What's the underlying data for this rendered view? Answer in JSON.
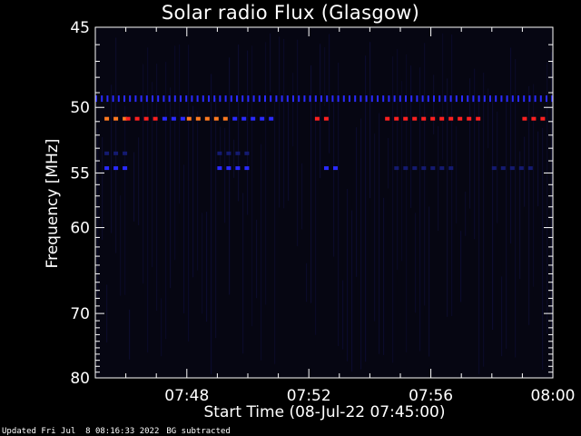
{
  "colors": {
    "background": "#000000",
    "axes": "#ffffff",
    "plot_background": "#060612",
    "strong_signal": "#ff2020",
    "medium_signal": "#ff7a20",
    "weak_signal": "#2a2aff",
    "faint_signal": "#141a70"
  },
  "chart_data": {
    "type": "heatmap",
    "title": "Solar radio Flux (Glasgow)",
    "xlabel": "Start Time (08-Jul-22 07:45:00)",
    "ylabel": "Frequency [MHz]",
    "xlim_minutes_after_start": [
      0,
      15
    ],
    "ylim_mhz": [
      45,
      80
    ],
    "y_axis_inverted": true,
    "y_tick_labels": [
      "45",
      "50",
      "55",
      "60",
      "70",
      "80"
    ],
    "y_tick_values": [
      45,
      50,
      55,
      60,
      70,
      80
    ],
    "x_tick_labels": [
      "07:48",
      "07:52",
      "07:56",
      "08:00"
    ],
    "x_tick_minutes": [
      3,
      7,
      11,
      15
    ],
    "bands": [
      {
        "frequency_mhz": 50.8,
        "intensity": "strong",
        "segments": [
          {
            "start_min": 0.3,
            "end_min": 1.0,
            "level": "medium"
          },
          {
            "start_min": 1.0,
            "end_min": 2.2,
            "level": "strong"
          },
          {
            "start_min": 2.2,
            "end_min": 3.0,
            "level": "weak"
          },
          {
            "start_min": 3.0,
            "end_min": 4.5,
            "level": "medium"
          },
          {
            "start_min": 4.5,
            "end_min": 5.9,
            "level": "weak"
          },
          {
            "start_min": 7.2,
            "end_min": 7.7,
            "level": "strong"
          },
          {
            "start_min": 9.5,
            "end_min": 12.6,
            "level": "strong"
          },
          {
            "start_min": 14.0,
            "end_min": 14.9,
            "level": "strong"
          }
        ]
      },
      {
        "frequency_mhz": 49.4,
        "intensity": "weak",
        "segments": [
          {
            "start_min": 0.0,
            "end_min": 15.0,
            "level": "weak"
          }
        ]
      },
      {
        "frequency_mhz": 54.6,
        "intensity": "faint",
        "segments": [
          {
            "start_min": 0.3,
            "end_min": 1.0,
            "level": "weak"
          },
          {
            "start_min": 4.0,
            "end_min": 5.2,
            "level": "weak"
          },
          {
            "start_min": 7.5,
            "end_min": 7.9,
            "level": "weak"
          },
          {
            "start_min": 9.8,
            "end_min": 11.9,
            "level": "faint"
          },
          {
            "start_min": 13.0,
            "end_min": 14.3,
            "level": "faint"
          }
        ]
      },
      {
        "frequency_mhz": 53.4,
        "intensity": "faint",
        "segments": [
          {
            "start_min": 0.3,
            "end_min": 1.0,
            "level": "faint"
          },
          {
            "start_min": 4.0,
            "end_min": 5.2,
            "level": "faint"
          }
        ]
      }
    ]
  },
  "footer": {
    "updated": "Updated Fri Jul  8 08:16:33 2022",
    "bg_note": "BG subtracted"
  }
}
